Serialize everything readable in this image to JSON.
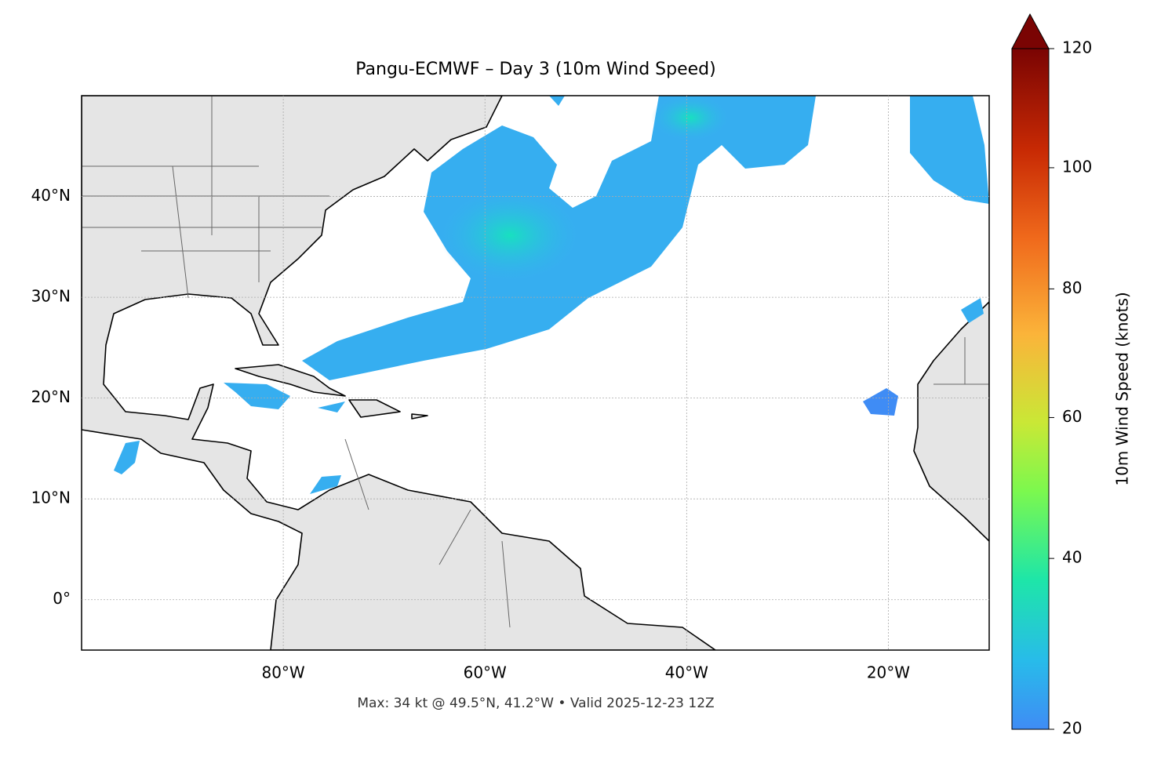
{
  "map": {
    "title": "Pangu-ECMWF – Day 3 (10m Wind Speed)",
    "lon_range": [
      -100,
      -10
    ],
    "lat_range": [
      -5,
      50
    ],
    "lon_ticks": [
      {
        "value": -80,
        "label": "80°W"
      },
      {
        "value": -60,
        "label": "60°W"
      },
      {
        "value": -40,
        "label": "40°W"
      },
      {
        "value": -20,
        "label": "20°W"
      }
    ],
    "lat_ticks": [
      {
        "value": 0,
        "label": "0°"
      },
      {
        "value": 10,
        "label": "10°N"
      },
      {
        "value": 20,
        "label": "20°N"
      },
      {
        "value": 30,
        "label": "30°N"
      },
      {
        "value": 40,
        "label": "40°N"
      }
    ],
    "footer": "Max: 34 kt @ 49.5°N, 41.2°W • Valid 2025-12-23 12Z"
  },
  "colorbar": {
    "label": "10m Wind Speed (knots)",
    "range": [
      20,
      120
    ],
    "ticks": [
      20,
      40,
      60,
      80,
      100,
      120
    ]
  }
}
